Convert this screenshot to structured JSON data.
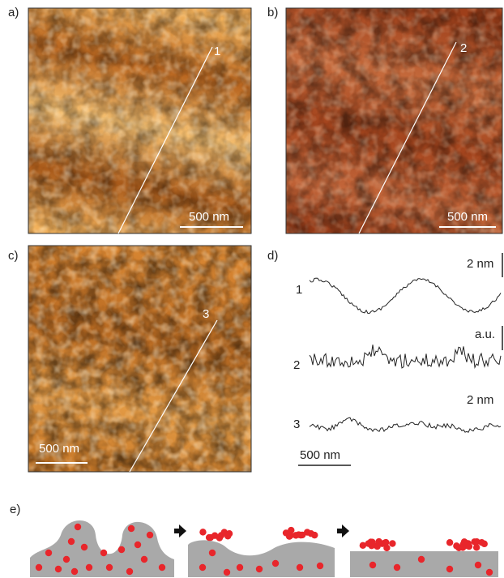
{
  "panels": [
    {
      "label": "a)",
      "line_label": "1",
      "scale_bar": "500 nm"
    },
    {
      "label": "b)",
      "line_label": "2",
      "scale_bar": "500 nm"
    },
    {
      "label": "c)",
      "line_label": "3",
      "scale_bar": "500 nm"
    }
  ],
  "profiles": {
    "label": "d)",
    "traces": [
      {
        "label": "1",
        "scale": "2 nm"
      },
      {
        "label": "2",
        "scale": "a.u."
      },
      {
        "label": "3",
        "scale": "2 nm"
      }
    ],
    "scale_bar": "500 nm"
  },
  "schematic": {
    "label": "e)"
  }
}
